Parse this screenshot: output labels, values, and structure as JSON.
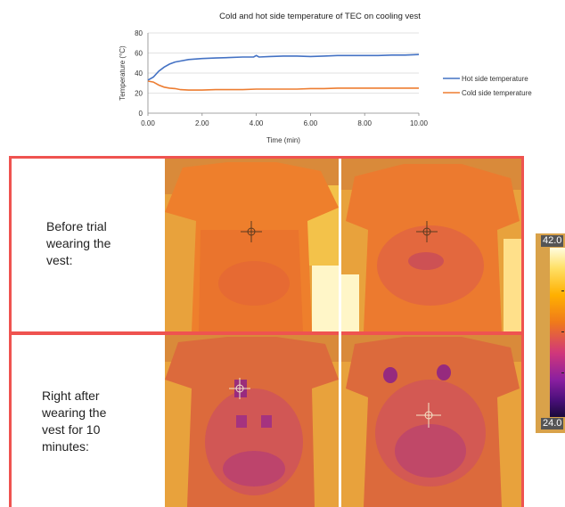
{
  "chart_data": {
    "type": "line",
    "title": "Cold and hot side temperature of TEC on cooling vest",
    "xlabel": "Time (min)",
    "ylabel": "Temperature (°C)",
    "xlim": [
      0,
      10
    ],
    "ylim": [
      0,
      80
    ],
    "x_ticks": [
      "0.00",
      "2.00",
      "4.00",
      "6.00",
      "8.00",
      "10.00"
    ],
    "y_ticks": [
      "0",
      "20",
      "40",
      "60",
      "80"
    ],
    "grid": "horizontal",
    "legend_position": "right",
    "series": [
      {
        "name": "Hot side temperature",
        "color": "#4472c4",
        "x": [
          0,
          0.2,
          0.4,
          0.6,
          0.8,
          1.0,
          1.2,
          1.5,
          2.0,
          2.5,
          3.0,
          3.5,
          3.9,
          4.0,
          4.1,
          4.5,
          5.0,
          5.5,
          6.0,
          6.5,
          7.0,
          7.5,
          8.0,
          8.5,
          9.0,
          9.5,
          10.0
        ],
        "y": [
          33,
          36,
          42,
          46,
          49,
          51,
          52,
          53.5,
          54.5,
          55,
          55.5,
          56,
          56,
          57.5,
          56,
          56.5,
          57,
          57,
          56.5,
          57,
          57.5,
          57.5,
          57.5,
          57.5,
          58,
          58,
          58.5
        ]
      },
      {
        "name": "Cold side temperature",
        "color": "#ed7d31",
        "x": [
          0,
          0.2,
          0.4,
          0.6,
          0.8,
          1.0,
          1.2,
          1.5,
          2.0,
          2.5,
          3.0,
          3.5,
          4.0,
          4.5,
          5.0,
          5.5,
          6.0,
          6.5,
          7.0,
          7.5,
          8.0,
          8.5,
          9.0,
          9.5,
          10.0
        ],
        "y": [
          32,
          31,
          28,
          26,
          25,
          24.5,
          23.5,
          23,
          23,
          23.5,
          23.5,
          23.5,
          24,
          24,
          24,
          24,
          24.5,
          24.5,
          25,
          25,
          25,
          25,
          25,
          25,
          25
        ]
      }
    ]
  },
  "thermal": {
    "row1_label": [
      "Before trial",
      "wearing the",
      "vest:"
    ],
    "row2_label": [
      "Right after",
      "wearing the",
      "vest for 10",
      "minutes:"
    ],
    "scale_max": "42.0",
    "scale_min": "24.0"
  }
}
